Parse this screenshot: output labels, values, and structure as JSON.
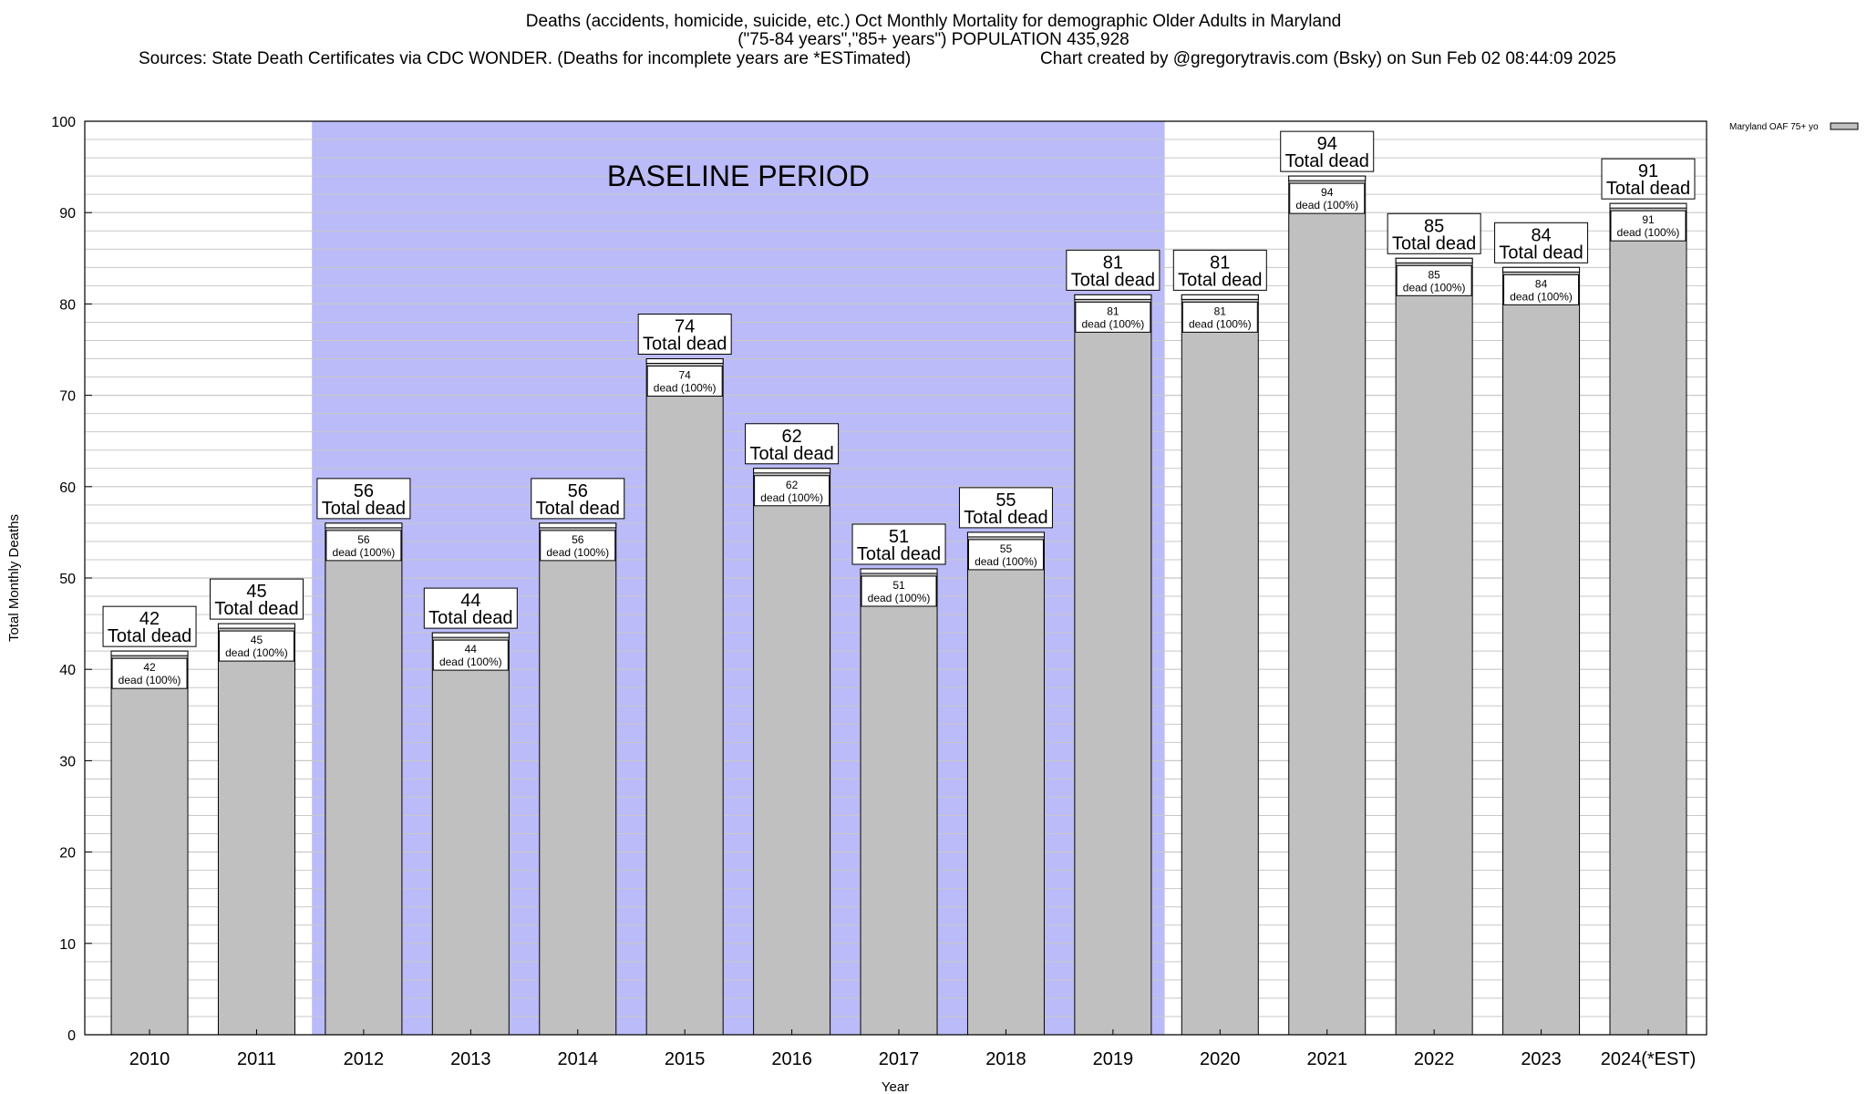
{
  "header": {
    "title_line1": "Deaths (accidents, homicide, suicide, etc.) Oct Monthly Mortality for demographic Older Adults in Maryland",
    "title_line2": "(\"75-84 years\",\"85+ years\") POPULATION 435,928",
    "sources": "Sources: State Death Certificates via CDC WONDER. (Deaths for incomplete years are *ESTimated)",
    "credit": "Chart created by @gregorytravis.com (Bsky) on Sun Feb 02 08:44:09 2025"
  },
  "chart_data": {
    "type": "bar",
    "categories": [
      "2010",
      "2011",
      "2012",
      "2013",
      "2014",
      "2015",
      "2016",
      "2017",
      "2018",
      "2019",
      "2020",
      "2021",
      "2022",
      "2023",
      "2024(*EST)"
    ],
    "series": [
      {
        "name": "Maryland OAF 75+ yo",
        "values": [
          42,
          45,
          56,
          44,
          56,
          74,
          62,
          51,
          55,
          81,
          81,
          94,
          85,
          84,
          91
        ]
      }
    ],
    "ylabel": "Total Monthly Deaths",
    "xlabel": "Year",
    "ylim": [
      0,
      100
    ],
    "yticks": [
      0,
      10,
      20,
      30,
      40,
      50,
      60,
      70,
      80,
      90,
      100
    ],
    "grid": true,
    "legend_position": "top-right",
    "baseline_period": {
      "label": "BASELINE PERIOD",
      "from": "2012",
      "to": "2019"
    },
    "bar_label_text": "Total dead",
    "inner_label_text": "dead (100%)",
    "colors": {
      "bar": "#c0c0c0",
      "baseline": "#bbbbf9",
      "grid": "#c8c8c8"
    }
  }
}
